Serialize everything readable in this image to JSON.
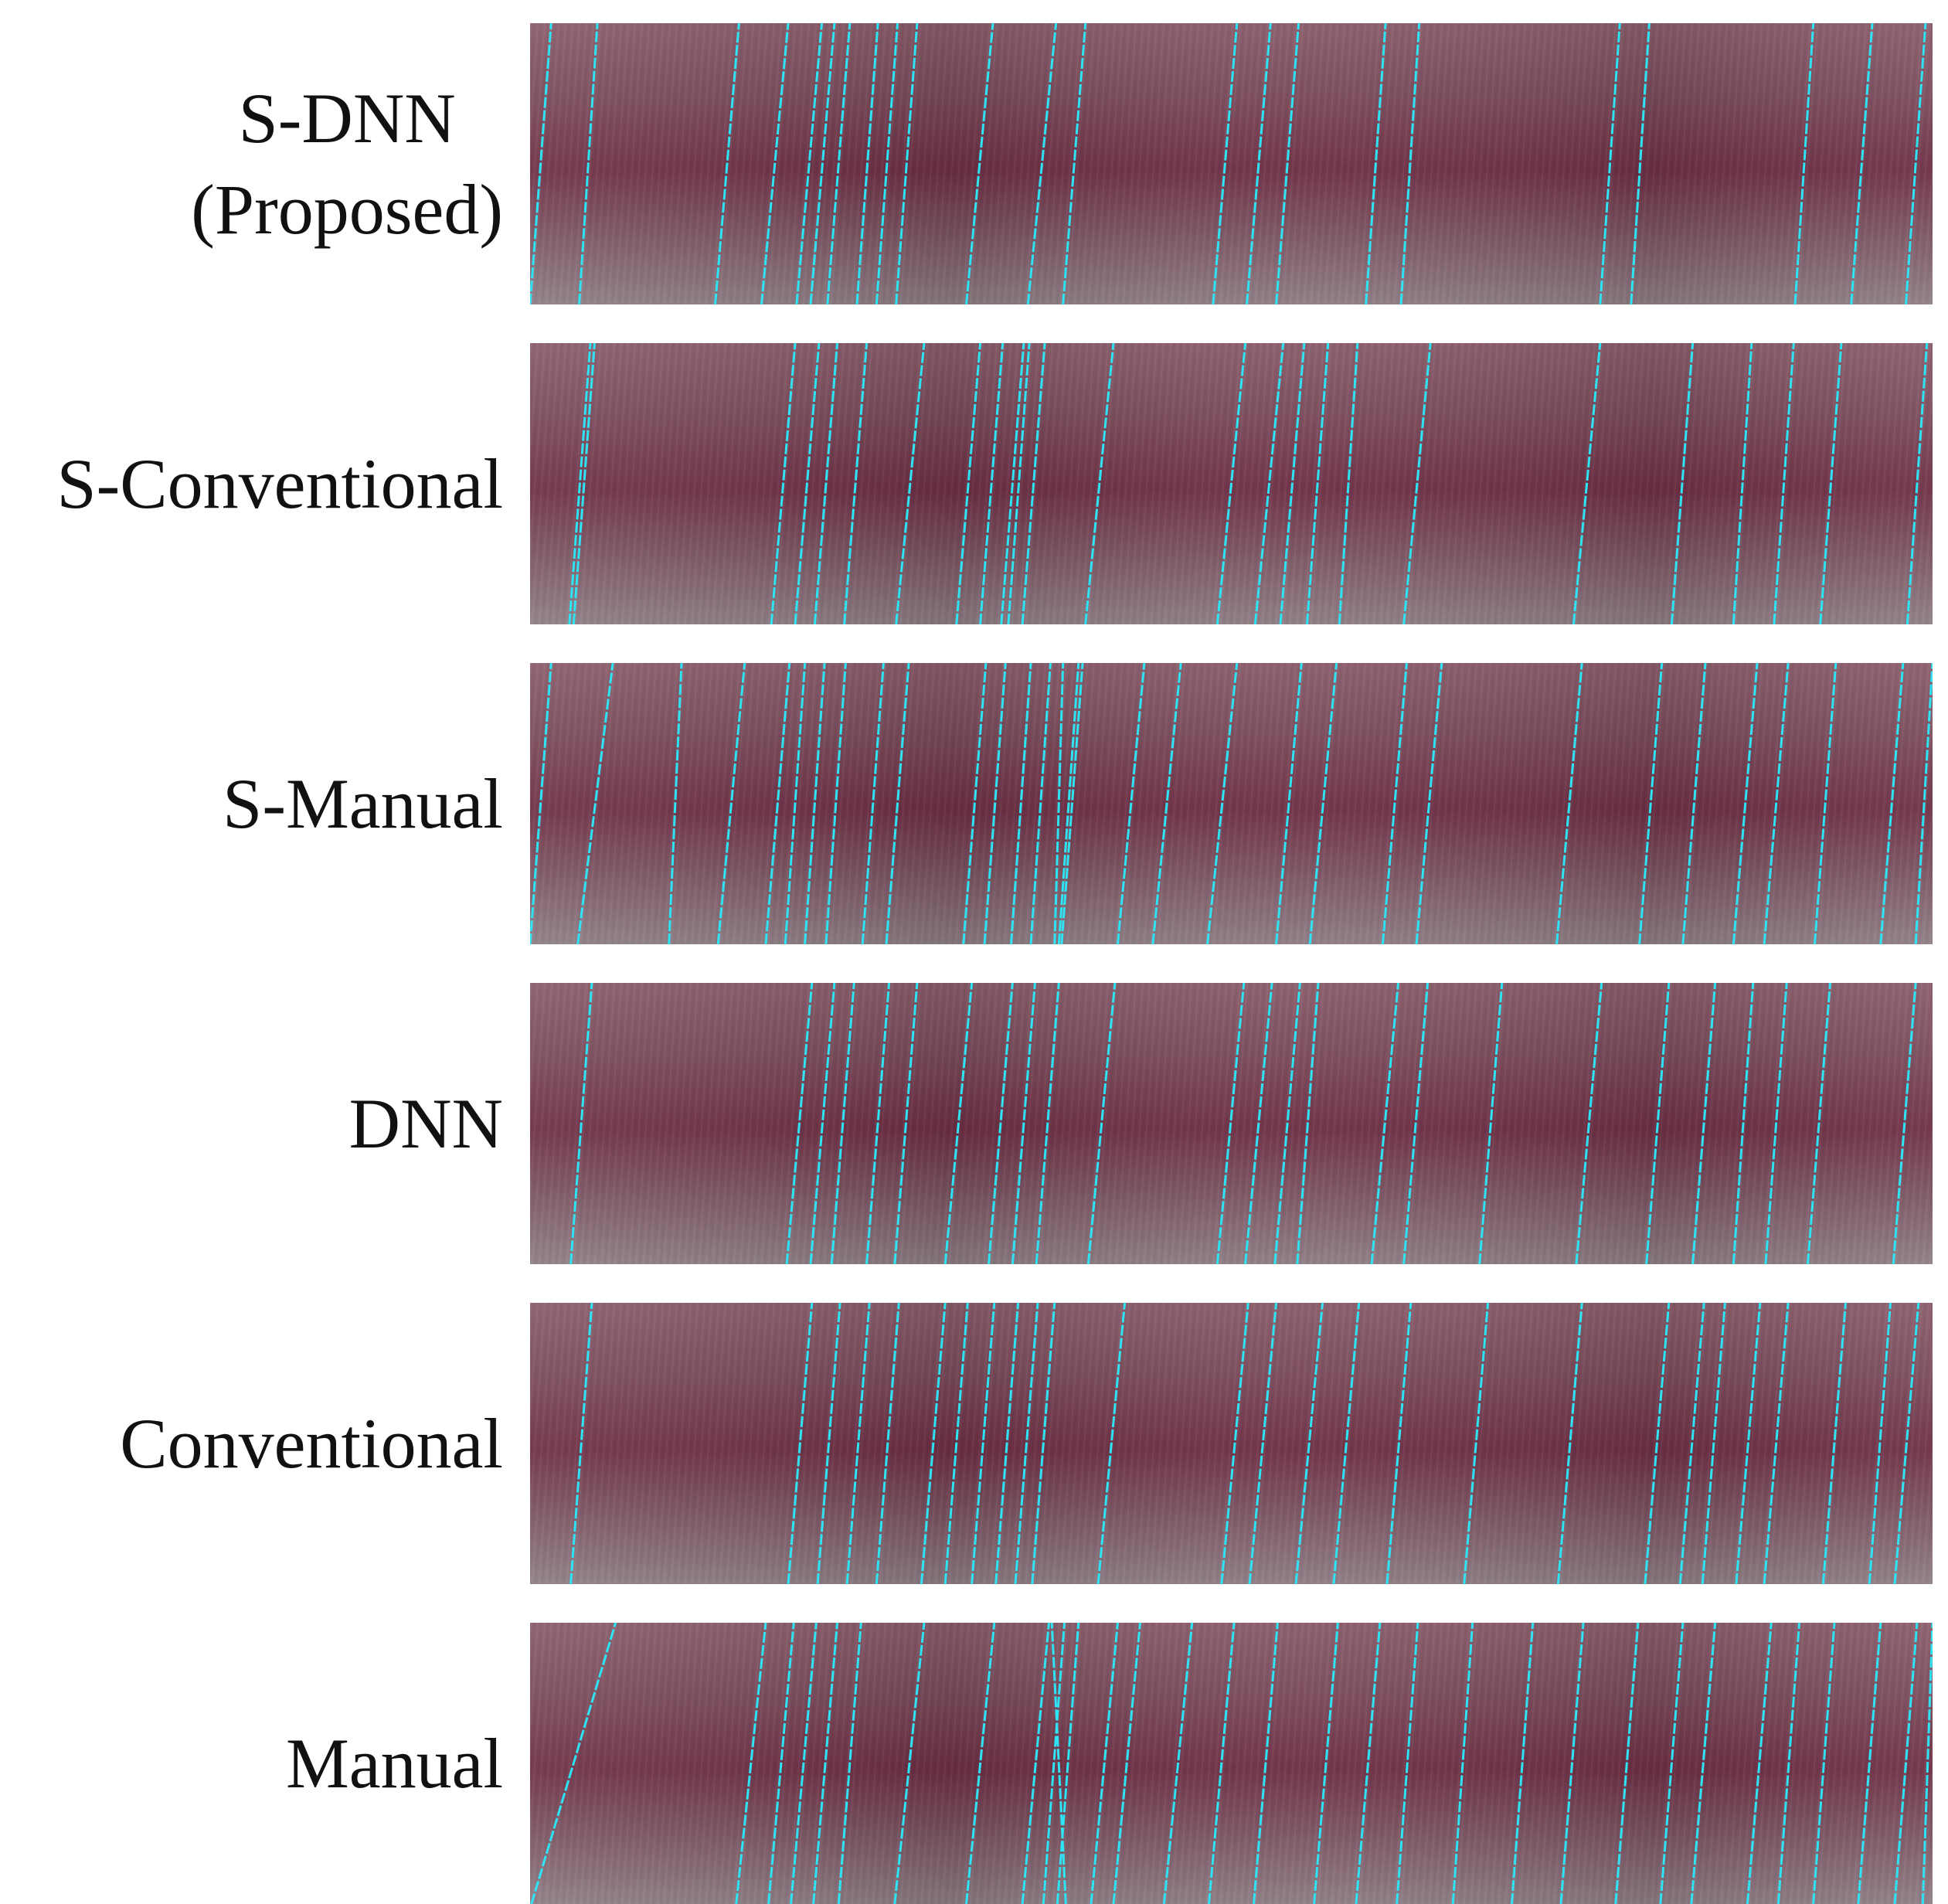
{
  "figure": {
    "rows": [
      {
        "id": "s-dnn",
        "label_lines": [
          "S-DNN",
          "(Proposed)"
        ],
        "align": "center",
        "lines": [
          [
            0.0,
            0.015
          ],
          [
            0.035,
            0.048
          ],
          [
            0.132,
            0.149
          ],
          [
            0.165,
            0.184
          ],
          [
            0.19,
            0.208
          ],
          [
            0.2,
            0.217
          ],
          [
            0.212,
            0.228
          ],
          [
            0.233,
            0.248
          ],
          [
            0.247,
            0.262
          ],
          [
            0.261,
            0.276
          ],
          [
            0.311,
            0.33
          ],
          [
            0.355,
            0.375
          ],
          [
            0.38,
            0.396
          ],
          [
            0.487,
            0.504
          ],
          [
            0.511,
            0.528
          ],
          [
            0.532,
            0.548
          ],
          [
            0.596,
            0.61
          ],
          [
            0.621,
            0.634
          ],
          [
            0.763,
            0.777
          ],
          [
            0.785,
            0.798
          ],
          [
            0.902,
            0.915
          ],
          [
            0.942,
            0.957
          ],
          [
            0.981,
            0.995
          ]
        ]
      },
      {
        "id": "s-conventional",
        "label_lines": [
          "S-Conventional"
        ],
        "align": "center",
        "lines": [
          [
            0.028,
            0.043
          ],
          [
            0.031,
            0.046
          ],
          [
            0.172,
            0.189
          ],
          [
            0.189,
            0.206
          ],
          [
            0.203,
            0.219
          ],
          [
            0.224,
            0.24
          ],
          [
            0.261,
            0.281
          ],
          [
            0.304,
            0.321
          ],
          [
            0.321,
            0.337
          ],
          [
            0.336,
            0.352
          ],
          [
            0.341,
            0.356
          ],
          [
            0.351,
            0.367
          ],
          [
            0.396,
            0.416
          ],
          [
            0.49,
            0.51
          ],
          [
            0.517,
            0.537
          ],
          [
            0.535,
            0.552
          ],
          [
            0.554,
            0.569
          ],
          [
            0.577,
            0.59
          ],
          [
            0.623,
            0.642
          ],
          [
            0.744,
            0.763
          ],
          [
            0.814,
            0.829
          ],
          [
            0.858,
            0.871
          ],
          [
            0.887,
            0.901
          ],
          [
            0.92,
            0.935
          ],
          [
            0.982,
            0.996
          ]
        ]
      },
      {
        "id": "s-manual",
        "label_lines": [
          "S-Manual"
        ],
        "align": "right",
        "lines": [
          [
            0.0,
            0.015
          ],
          [
            0.034,
            0.059
          ],
          [
            0.099,
            0.108
          ],
          [
            0.134,
            0.153
          ],
          [
            0.168,
            0.185
          ],
          [
            0.182,
            0.196
          ],
          [
            0.196,
            0.21
          ],
          [
            0.211,
            0.225
          ],
          [
            0.237,
            0.252
          ],
          [
            0.254,
            0.27
          ],
          [
            0.309,
            0.325
          ],
          [
            0.324,
            0.339
          ],
          [
            0.343,
            0.357
          ],
          [
            0.357,
            0.371
          ],
          [
            0.377,
            0.391
          ],
          [
            0.379,
            0.394
          ],
          [
            0.374,
            0.38
          ],
          [
            0.419,
            0.438
          ],
          [
            0.444,
            0.464
          ],
          [
            0.483,
            0.504
          ],
          [
            0.532,
            0.55
          ],
          [
            0.556,
            0.575
          ],
          [
            0.608,
            0.625
          ],
          [
            0.632,
            0.65
          ],
          [
            0.732,
            0.75
          ],
          [
            0.791,
            0.807
          ],
          [
            0.822,
            0.838
          ],
          [
            0.858,
            0.875
          ],
          [
            0.88,
            0.897
          ],
          [
            0.916,
            0.931
          ],
          [
            0.963,
            0.979
          ],
          [
            0.988,
            1.0
          ]
        ]
      },
      {
        "id": "dnn",
        "label_lines": [
          "DNN"
        ],
        "align": "right",
        "lines": [
          [
            0.029,
            0.044
          ],
          [
            0.183,
            0.201
          ],
          [
            0.2,
            0.217
          ],
          [
            0.215,
            0.231
          ],
          [
            0.24,
            0.256
          ],
          [
            0.26,
            0.276
          ],
          [
            0.296,
            0.315
          ],
          [
            0.327,
            0.344
          ],
          [
            0.344,
            0.36
          ],
          [
            0.361,
            0.377
          ],
          [
            0.398,
            0.417
          ],
          [
            0.49,
            0.509
          ],
          [
            0.51,
            0.529
          ],
          [
            0.531,
            0.549
          ],
          [
            0.547,
            0.562
          ],
          [
            0.6,
            0.619
          ],
          [
            0.623,
            0.64
          ],
          [
            0.677,
            0.693
          ],
          [
            0.746,
            0.764
          ],
          [
            0.796,
            0.812
          ],
          [
            0.829,
            0.845
          ],
          [
            0.858,
            0.872
          ],
          [
            0.881,
            0.896
          ],
          [
            0.911,
            0.927
          ],
          [
            0.972,
            0.988
          ]
        ]
      },
      {
        "id": "conventional",
        "label_lines": [
          "Conventional"
        ],
        "align": "right",
        "lines": [
          [
            0.029,
            0.044
          ],
          [
            0.184,
            0.201
          ],
          [
            0.205,
            0.221
          ],
          [
            0.226,
            0.242
          ],
          [
            0.247,
            0.263
          ],
          [
            0.279,
            0.296
          ],
          [
            0.296,
            0.312
          ],
          [
            0.315,
            0.331
          ],
          [
            0.332,
            0.348
          ],
          [
            0.346,
            0.362
          ],
          [
            0.358,
            0.374
          ],
          [
            0.405,
            0.424
          ],
          [
            0.493,
            0.512
          ],
          [
            0.513,
            0.532
          ],
          [
            0.546,
            0.565
          ],
          [
            0.573,
            0.591
          ],
          [
            0.611,
            0.628
          ],
          [
            0.666,
            0.683
          ],
          [
            0.733,
            0.75
          ],
          [
            0.795,
            0.812
          ],
          [
            0.82,
            0.837
          ],
          [
            0.836,
            0.852
          ],
          [
            0.86,
            0.877
          ],
          [
            0.88,
            0.897
          ],
          [
            0.922,
            0.938
          ],
          [
            0.955,
            0.97
          ],
          [
            0.973,
            0.99
          ]
        ]
      },
      {
        "id": "manual",
        "label_lines": [
          "Manual"
        ],
        "align": "right",
        "lines": [
          [
            0.001,
            0.061
          ],
          [
            0.147,
            0.168
          ],
          [
            0.17,
            0.188
          ],
          [
            0.186,
            0.204
          ],
          [
            0.202,
            0.219
          ],
          [
            0.22,
            0.236
          ],
          [
            0.26,
            0.281
          ],
          [
            0.311,
            0.331
          ],
          [
            0.351,
            0.37
          ],
          [
            0.366,
            0.381
          ],
          [
            0.376,
            0.391
          ],
          [
            0.382,
            0.372
          ],
          [
            0.4,
            0.419
          ],
          [
            0.416,
            0.435
          ],
          [
            0.452,
            0.472
          ],
          [
            0.484,
            0.502
          ],
          [
            0.516,
            0.533
          ],
          [
            0.559,
            0.576
          ],
          [
            0.589,
            0.606
          ],
          [
            0.618,
            0.633
          ],
          [
            0.658,
            0.672
          ],
          [
            0.7,
            0.715
          ],
          [
            0.735,
            0.751
          ],
          [
            0.774,
            0.79
          ],
          [
            0.806,
            0.822
          ],
          [
            0.828,
            0.845
          ],
          [
            0.868,
            0.885
          ],
          [
            0.89,
            0.905
          ],
          [
            0.915,
            0.93
          ],
          [
            0.947,
            0.963
          ],
          [
            0.973,
            0.989
          ],
          [
            0.993,
            1.0
          ]
        ]
      }
    ],
    "colors": {
      "line": "#2ee4f4",
      "background": "#7a4a5a"
    }
  }
}
